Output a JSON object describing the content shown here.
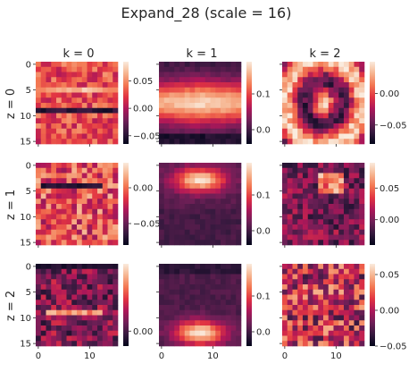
{
  "title": "Expand_28 (scale = 16)",
  "columns": [
    "k = 0",
    "k = 1",
    "k = 2"
  ],
  "rows": [
    "z = 0",
    "z = 1",
    "z = 2"
  ],
  "colormap": {
    "name": "rocket",
    "stops": [
      "#03051a",
      "#36193e",
      "#701f57",
      "#ad1759",
      "#e13342",
      "#f37651",
      "#f6b48f",
      "#faebdd"
    ]
  },
  "chart_data": {
    "type": "heatmap",
    "title": "Expand_28 (scale = 16)",
    "grid_size": 16,
    "x_ticks": [
      0,
      10
    ],
    "y_ticks": [
      0,
      5,
      10,
      15
    ],
    "panels": [
      {
        "row": 0,
        "col": 0,
        "label": "z = 0, k = 0",
        "vmin": -0.065,
        "vmax": 0.085,
        "cbar_ticks": [
          -0.05,
          0.0,
          0.05
        ],
        "cbar_labels": [
          "−0.05",
          "0.00",
          "0.05"
        ],
        "pattern": "hstripes",
        "bright_rows": [
          5
        ],
        "dark_rows": [
          9
        ]
      },
      {
        "row": 0,
        "col": 1,
        "label": "z = 0, k = 1",
        "vmin": -0.04,
        "vmax": 0.19,
        "cbar_ticks": [
          0.0,
          0.1
        ],
        "cbar_labels": [
          "0.0",
          "0.1"
        ],
        "pattern": "hourglass"
      },
      {
        "row": 0,
        "col": 2,
        "label": "z = 0, k = 2",
        "vmin": -0.08,
        "vmax": 0.05,
        "cbar_ticks": [
          -0.05,
          0.0
        ],
        "cbar_labels": [
          "−0.05",
          "0.00"
        ],
        "pattern": "rings"
      },
      {
        "row": 1,
        "col": 0,
        "label": "z = 1, k = 0",
        "vmin": -0.08,
        "vmax": 0.035,
        "cbar_ticks": [
          -0.05,
          0.0
        ],
        "cbar_labels": [
          "−0.05",
          "0.00"
        ],
        "pattern": "noise_bright",
        "dark_rows": [
          4
        ]
      },
      {
        "row": 1,
        "col": 1,
        "label": "z = 1, k = 1",
        "vmin": -0.04,
        "vmax": 0.19,
        "cbar_ticks": [
          0.0,
          0.1
        ],
        "cbar_labels": [
          "0.0",
          "0.1"
        ],
        "pattern": "blob_top"
      },
      {
        "row": 1,
        "col": 2,
        "label": "z = 1, k = 2",
        "vmin": -0.04,
        "vmax": 0.09,
        "cbar_ticks": [
          0.0,
          0.05
        ],
        "cbar_labels": [
          "0.00",
          "0.05"
        ],
        "pattern": "noise_dark"
      },
      {
        "row": 2,
        "col": 0,
        "label": "z = 2, k = 0",
        "vmin": -0.02,
        "vmax": 0.09,
        "cbar_ticks": [
          0.0
        ],
        "cbar_labels": [
          "0.00"
        ],
        "pattern": "noise_dark_stripes",
        "bright_rows": [
          9
        ],
        "dark_rows": [
          0
        ]
      },
      {
        "row": 2,
        "col": 1,
        "label": "z = 2, k = 1",
        "vmin": -0.04,
        "vmax": 0.19,
        "cbar_ticks": [
          0.0,
          0.1
        ],
        "cbar_labels": [
          "0.0",
          "0.1"
        ],
        "pattern": "blob_bottom"
      },
      {
        "row": 2,
        "col": 2,
        "label": "z = 2, k = 2",
        "vmin": -0.05,
        "vmax": 0.065,
        "cbar_ticks": [
          -0.05,
          0.0,
          0.05
        ],
        "cbar_labels": [
          "−0.05",
          "0.00",
          "0.05"
        ],
        "pattern": "noise_mid"
      }
    ]
  }
}
